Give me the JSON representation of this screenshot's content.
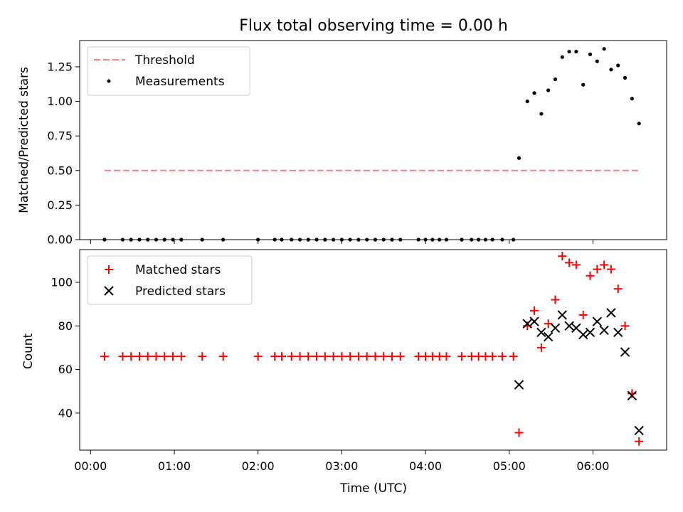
{
  "chart_data": [
    {
      "type": "line",
      "title": "Flux total observing time = 0.00 h",
      "xlabel": "",
      "ylabel": "Matched/Predicted stars",
      "xlim_hours": [
        -0.13,
        6.88
      ],
      "ylim": [
        0,
        1.44
      ],
      "yticks": [
        "0.00",
        "0.25",
        "0.50",
        "0.75",
        "1.00",
        "1.25"
      ],
      "legend_position": "top-left",
      "colors": {
        "threshold": "#ff7f7f",
        "measurements": "#000000"
      },
      "series": [
        {
          "name": "Threshold",
          "style": "dashed-line",
          "x": [
            "00:10",
            "06:33"
          ],
          "y": [
            0.5,
            0.5
          ]
        },
        {
          "name": "Measurements",
          "style": "dots",
          "x": [
            "00:10",
            "00:23",
            "00:29",
            "00:35",
            "00:41",
            "00:47",
            "00:53",
            "00:59",
            "01:05",
            "01:20",
            "01:35",
            "02:00",
            "02:12",
            "02:17",
            "02:24",
            "02:30",
            "02:36",
            "02:42",
            "02:48",
            "02:54",
            "03:00",
            "03:06",
            "03:12",
            "03:18",
            "03:24",
            "03:30",
            "03:36",
            "03:42",
            "03:55",
            "04:00",
            "04:05",
            "04:10",
            "04:15",
            "04:26",
            "04:33",
            "04:38",
            "04:43",
            "04:48",
            "04:55",
            "05:03",
            "05:07",
            "05:13",
            "05:18",
            "05:23",
            "05:28",
            "05:33",
            "05:38",
            "05:43",
            "05:48",
            "05:53",
            "05:58",
            "06:03",
            "06:08",
            "06:13",
            "06:18",
            "06:23",
            "06:28",
            "06:33"
          ],
          "y": [
            0,
            0,
            0,
            0,
            0,
            0,
            0,
            0,
            0,
            0,
            0,
            0,
            0,
            0,
            0,
            0,
            0,
            0,
            0,
            0,
            0,
            0,
            0,
            0,
            0,
            0,
            0,
            0,
            0,
            0,
            0,
            0,
            0,
            0,
            0,
            0,
            0,
            0,
            0,
            0,
            0.59,
            1.0,
            1.06,
            0.91,
            1.08,
            1.16,
            1.32,
            1.36,
            1.36,
            1.12,
            1.34,
            1.29,
            1.38,
            1.23,
            1.26,
            1.17,
            1.02,
            0.84
          ]
        }
      ]
    },
    {
      "type": "scatter",
      "title": "",
      "xlabel": "Time (UTC)",
      "ylabel": "Count",
      "xlim_hours": [
        -0.13,
        6.88
      ],
      "ylim": [
        23,
        115
      ],
      "yticks": [
        "40",
        "60",
        "80",
        "100"
      ],
      "xticks": [
        "00:00",
        "01:00",
        "02:00",
        "03:00",
        "04:00",
        "05:00",
        "06:00"
      ],
      "legend_position": "top-left",
      "colors": {
        "matched": "#ff0000",
        "predicted": "#000000"
      },
      "series": [
        {
          "name": "Matched stars",
          "marker": "plus",
          "x": [
            "00:10",
            "00:23",
            "00:29",
            "00:35",
            "00:41",
            "00:47",
            "00:53",
            "00:59",
            "01:05",
            "01:20",
            "01:35",
            "02:00",
            "02:12",
            "02:17",
            "02:24",
            "02:30",
            "02:36",
            "02:42",
            "02:48",
            "02:54",
            "03:00",
            "03:06",
            "03:12",
            "03:18",
            "03:24",
            "03:30",
            "03:36",
            "03:42",
            "03:55",
            "04:00",
            "04:05",
            "04:10",
            "04:15",
            "04:26",
            "04:33",
            "04:38",
            "04:43",
            "04:48",
            "04:55",
            "05:03",
            "05:07",
            "05:13",
            "05:18",
            "05:23",
            "05:28",
            "05:33",
            "05:38",
            "05:43",
            "05:48",
            "05:53",
            "05:58",
            "06:03",
            "06:08",
            "06:13",
            "06:18",
            "06:23",
            "06:28",
            "06:33"
          ],
          "y": [
            66,
            66,
            66,
            66,
            66,
            66,
            66,
            66,
            66,
            66,
            66,
            66,
            66,
            66,
            66,
            66,
            66,
            66,
            66,
            66,
            66,
            66,
            66,
            66,
            66,
            66,
            66,
            66,
            66,
            66,
            66,
            66,
            66,
            66,
            66,
            66,
            66,
            66,
            66,
            66,
            31,
            80,
            87,
            70,
            81,
            92,
            112,
            109,
            108,
            85,
            103,
            106,
            108,
            106,
            97,
            80,
            49,
            27
          ]
        },
        {
          "name": "Predicted stars",
          "marker": "x",
          "x": [
            "05:07",
            "05:13",
            "05:18",
            "05:23",
            "05:28",
            "05:33",
            "05:38",
            "05:43",
            "05:48",
            "05:53",
            "05:58",
            "06:03",
            "06:08",
            "06:13",
            "06:18",
            "06:23",
            "06:28",
            "06:33"
          ],
          "y": [
            53,
            81,
            82,
            77,
            75,
            79,
            85,
            80,
            79,
            76,
            77,
            82,
            78,
            86,
            77,
            68,
            48,
            32
          ]
        }
      ]
    }
  ]
}
